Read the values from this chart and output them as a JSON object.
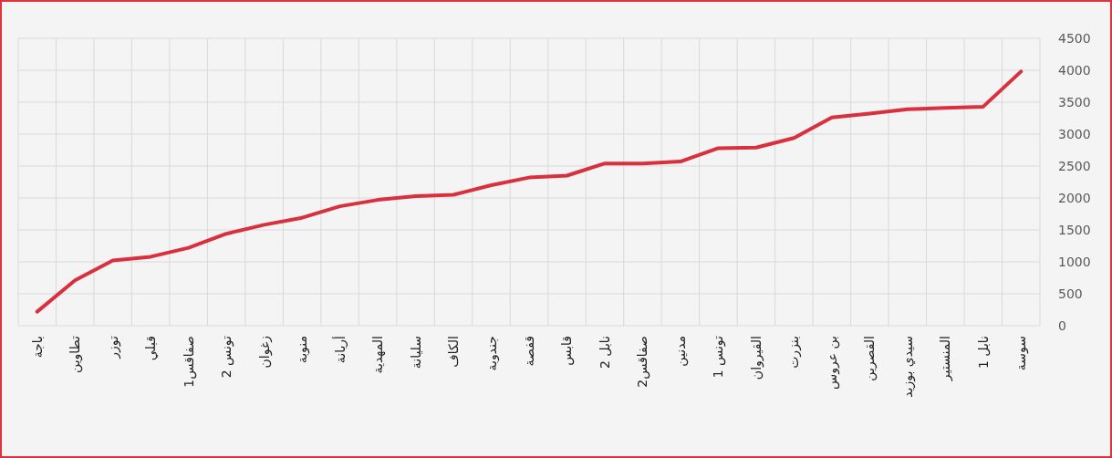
{
  "chart_data": {
    "type": "line",
    "categories": [
      "باجة",
      "تطاوين",
      "توزر",
      "قبلي",
      "صفاقس1",
      "تونس 2",
      "زغوان",
      "منوبة",
      "أريانة",
      "المهدية",
      "سليانة",
      "الكاف",
      "جندوبة",
      "قفصة",
      "قابس",
      "نابل 2",
      "صفاقس2",
      "مدنين",
      "تونس 1",
      "القيروان",
      "بنزرت",
      "بن عروس",
      "القصرين",
      "سيدي بوزيد",
      "المنستير",
      "نابل 1",
      "سوسة"
    ],
    "series": [
      {
        "color": "#d9303e",
        "values": [
          220,
          710,
          1020,
          1080,
          1220,
          1440,
          1580,
          1690,
          1870,
          1970,
          2030,
          2050,
          2200,
          2320,
          2350,
          2540,
          2540,
          2570,
          2780,
          2790,
          2940,
          3260,
          3320,
          3390,
          3410,
          3430,
          3980
        ]
      }
    ],
    "ylim": [
      0,
      4500
    ],
    "yticks": [
      0,
      500,
      1000,
      1500,
      2000,
      2500,
      3000,
      3500,
      4000,
      4500
    ],
    "grid": true,
    "marker": "none",
    "line_style": "solid"
  }
}
